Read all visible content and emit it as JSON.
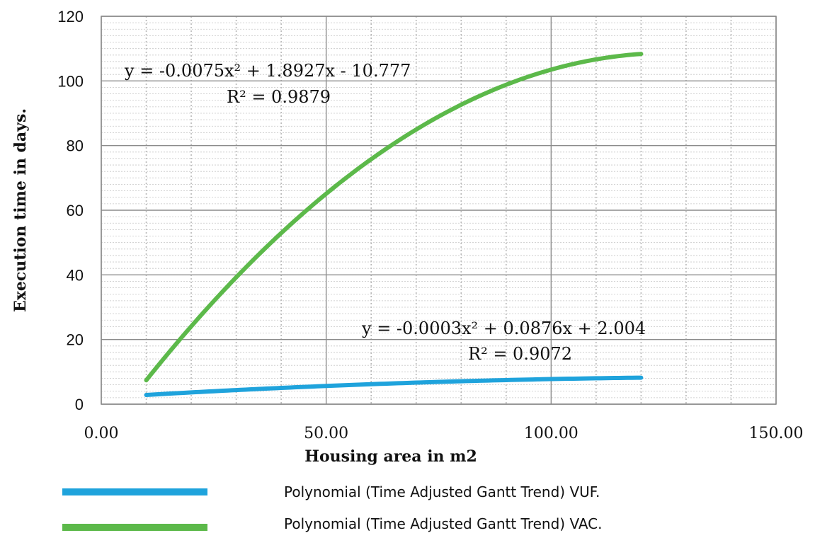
{
  "chart_data": {
    "type": "line",
    "title": "",
    "xlabel": "Housing area in  m2",
    "ylabel": "Execution time in days.",
    "xlim": [
      0,
      150
    ],
    "ylim": [
      0,
      120
    ],
    "x_ticks": [
      "0.00",
      "50.00",
      "100.00",
      "150.00"
    ],
    "y_ticks": [
      "0",
      "20",
      "40",
      "60",
      "80",
      "100",
      "120"
    ],
    "grid": true,
    "legend_position": "bottom",
    "series": [
      {
        "name": "Polynomial (Time Adjusted Gantt Trend) VUF.",
        "color": "#1fa3dc",
        "coefficients": {
          "a": -0.0003,
          "b": 0.0876,
          "c": 2.004
        },
        "x_range": [
          10,
          120
        ],
        "equation": "y = -0.0003x² + 0.0876x + 2.004",
        "r2": "R² = 0.9072",
        "x": [
          10,
          20,
          30,
          40,
          50,
          60,
          70,
          80,
          90,
          100,
          110,
          120
        ],
        "y": [
          2.85,
          3.64,
          4.36,
          5.03,
          5.63,
          6.18,
          6.66,
          7.09,
          7.46,
          7.76,
          8.01,
          8.19
        ]
      },
      {
        "name": "Polynomial (Time Adjusted Gantt Trend) VAC.",
        "color": "#5cb94a",
        "coefficients": {
          "a": -0.0075,
          "b": 1.8927,
          "c": -10.777
        },
        "x_range": [
          10,
          120
        ],
        "equation": "y = -0.0075x² + 1.8927x - 10.777",
        "r2": "R² = 0.9879",
        "x": [
          10,
          20,
          30,
          40,
          50,
          60,
          70,
          80,
          90,
          100,
          110,
          120
        ],
        "y": [
          7.4,
          24.1,
          39.3,
          53.0,
          65.1,
          75.8,
          85.0,
          92.6,
          98.8,
          103.5,
          106.6,
          108.3
        ]
      }
    ]
  }
}
